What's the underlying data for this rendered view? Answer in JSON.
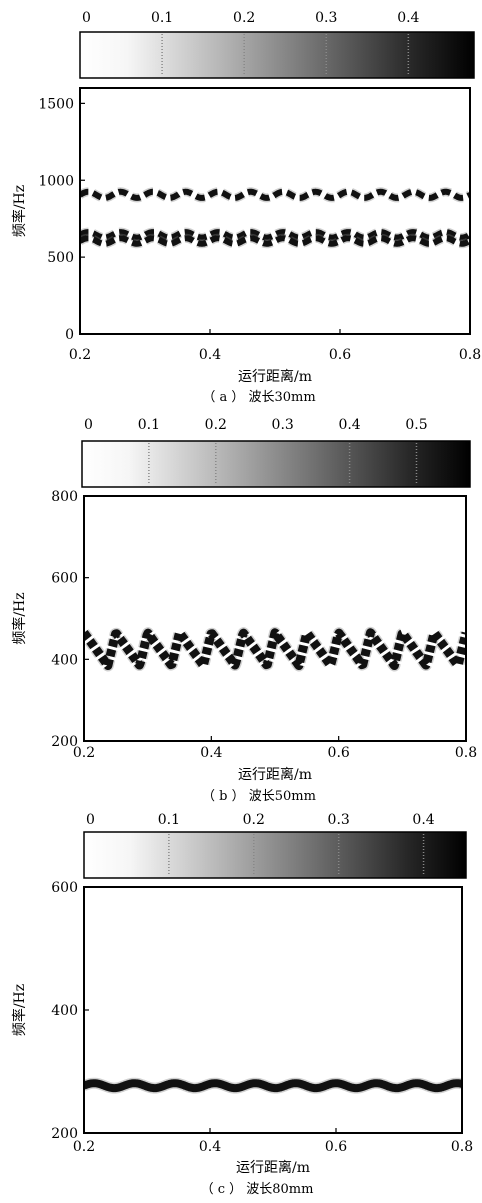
{
  "chart_data": [
    {
      "type": "heatmap",
      "caption_label": "（ a ） 波长30mm",
      "xlabel": "运行距离/m",
      "ylabel": "频率/Hz",
      "xlim": [
        0.2,
        0.8
      ],
      "ylim": [
        0,
        1600
      ],
      "x_ticks": [
        "0.2",
        "0.4",
        "0.6",
        "0.8"
      ],
      "y_ticks": [
        "0",
        "500",
        "1000",
        "1500"
      ],
      "colorbar_ticks": [
        "0",
        "0.1",
        "0.2",
        "0.3",
        "0.4"
      ],
      "colorbar_range": [
        0,
        0.48
      ],
      "bands": [
        {
          "center": 905,
          "amplitude": 20,
          "period": 0.05,
          "style": "dash"
        },
        {
          "center": 645,
          "amplitude": 18,
          "period": 0.05,
          "style": "dash"
        },
        {
          "center": 605,
          "amplitude": 18,
          "period": 0.05,
          "style": "dash"
        }
      ],
      "colormap": "gray_reversed"
    },
    {
      "type": "heatmap",
      "caption_label": "（ b ） 波长50mm",
      "xlabel": "运行距离/m",
      "ylabel": "频率/Hz",
      "xlim": [
        0.2,
        0.8
      ],
      "ylim": [
        200,
        800
      ],
      "x_ticks": [
        "0.2",
        "0.4",
        "0.6",
        "0.8"
      ],
      "y_ticks": [
        "200",
        "400",
        "600",
        "800"
      ],
      "colorbar_ticks": [
        "0",
        "0.1",
        "0.2",
        "0.3",
        "0.4",
        "0.5"
      ],
      "colorbar_range": [
        0,
        0.58
      ],
      "bands": [
        {
          "center": 425,
          "amplitude": 40,
          "period": 0.05,
          "style": "zigzag"
        }
      ],
      "colormap": "gray_reversed"
    },
    {
      "type": "heatmap",
      "caption_label": "（ c ） 波长80mm",
      "xlabel": "运行距离/m",
      "ylabel": "频率/Hz",
      "xlim": [
        0.2,
        0.8
      ],
      "ylim": [
        200,
        600
      ],
      "x_ticks": [
        "0.2",
        "0.4",
        "0.6",
        "0.8"
      ],
      "y_ticks": [
        "200",
        "400",
        "600"
      ],
      "colorbar_ticks": [
        "0",
        "0.1",
        "0.2",
        "0.3",
        "0.4"
      ],
      "colorbar_range": [
        0,
        0.45
      ],
      "bands": [
        {
          "center": 277,
          "amplitude": 4,
          "period": 0.064,
          "style": "solid"
        }
      ],
      "colormap": "gray_reversed"
    }
  ]
}
